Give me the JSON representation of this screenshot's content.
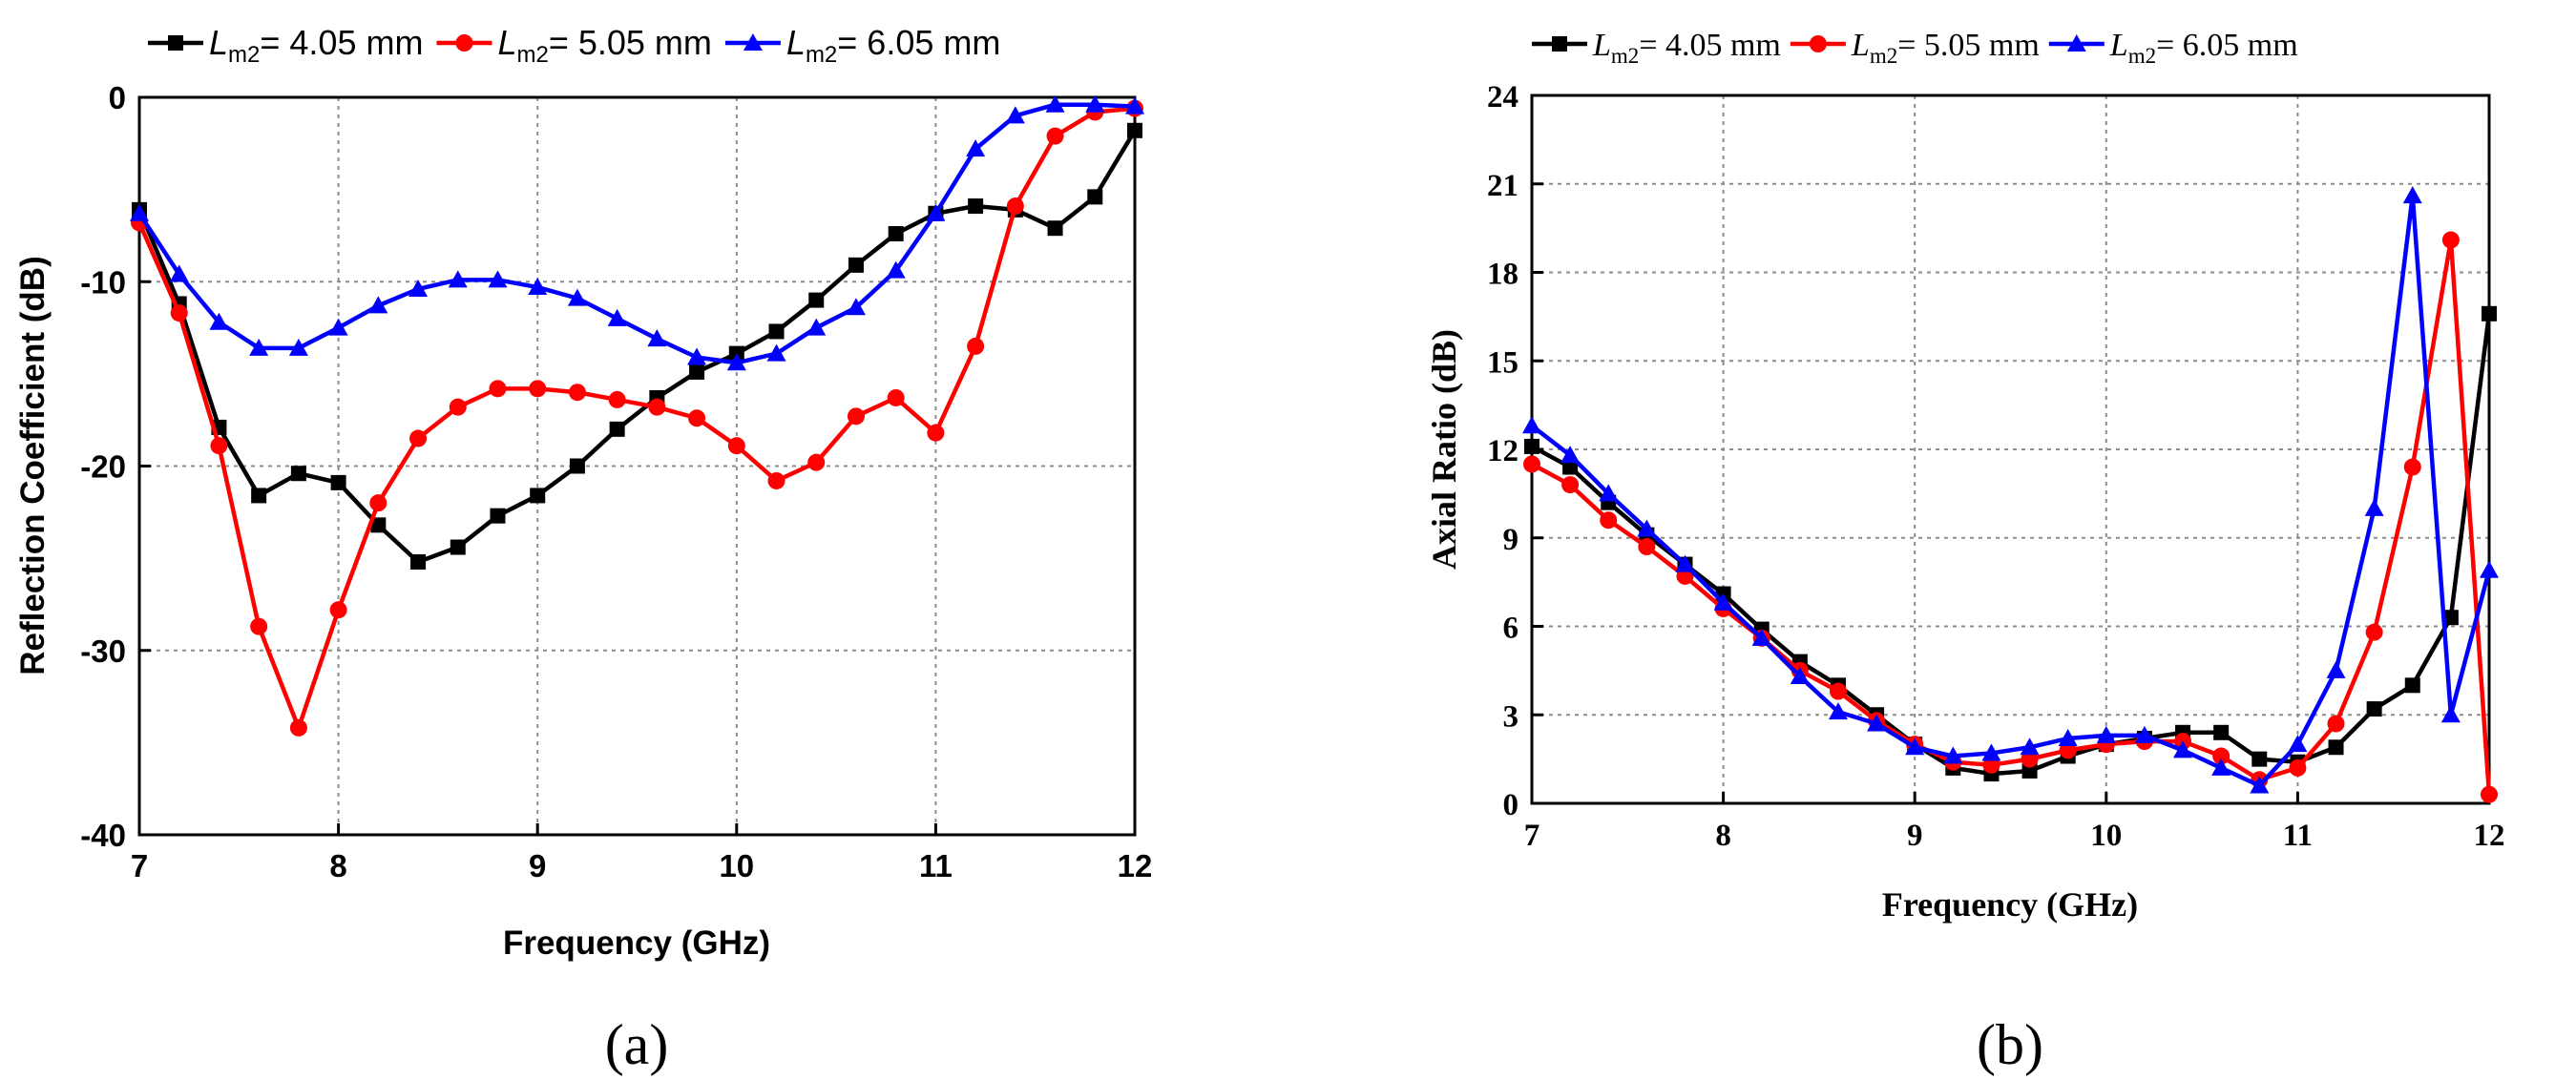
{
  "chart_data": [
    {
      "panel": "a",
      "type": "line",
      "panel_label": "(a)",
      "xlabel": "Frequency (GHz)",
      "ylabel": "Reflection Coefficient (dB)",
      "xlim": [
        7,
        12
      ],
      "ylim": [
        -40,
        0
      ],
      "xticks": [
        7,
        8,
        9,
        10,
        11,
        12
      ],
      "yticks": [
        -40,
        -30,
        -20,
        -10,
        0
      ],
      "grid": true,
      "legend_position": "top",
      "series": [
        {
          "name": "L_m2 = 4.05 mm",
          "legend_symbol": "L",
          "legend_subscript": "m2",
          "legend_value": "= 4.05 mm",
          "color": "#000000",
          "marker": "square",
          "x": [
            7,
            7.2,
            7.4,
            7.6,
            7.8,
            8,
            8.2,
            8.4,
            8.6,
            8.8,
            9,
            9.2,
            9.4,
            9.6,
            9.8,
            10,
            10.2,
            10.4,
            10.6,
            10.8,
            11,
            11.2,
            11.4,
            11.6,
            11.8,
            12
          ],
          "y": [
            -6.1,
            -11.2,
            -17.9,
            -21.6,
            -20.4,
            -20.9,
            -23.2,
            -25.2,
            -24.4,
            -22.7,
            -21.6,
            -20.0,
            -18.0,
            -16.3,
            -14.9,
            -13.9,
            -12.7,
            -11.0,
            -9.1,
            -7.4,
            -6.3,
            -5.9,
            -6.1,
            -7.1,
            -5.4,
            -1.8
          ]
        },
        {
          "name": "L_m2 = 5.05 mm",
          "legend_symbol": "L",
          "legend_subscript": "m2",
          "legend_value": "= 5.05 mm",
          "color": "#ff0000",
          "marker": "circle",
          "x": [
            7,
            7.2,
            7.4,
            7.6,
            7.8,
            8,
            8.2,
            8.4,
            8.6,
            8.8,
            9,
            9.2,
            9.4,
            9.6,
            9.8,
            10,
            10.2,
            10.4,
            10.6,
            10.8,
            11,
            11.2,
            11.4,
            11.6,
            11.8,
            12
          ],
          "y": [
            -6.8,
            -11.7,
            -18.9,
            -28.7,
            -34.2,
            -27.8,
            -22.0,
            -18.5,
            -16.8,
            -15.8,
            -15.8,
            -16.0,
            -16.4,
            -16.8,
            -17.4,
            -18.9,
            -20.8,
            -19.8,
            -17.3,
            -16.3,
            -18.2,
            -13.5,
            -5.9,
            -2.1,
            -0.8,
            -0.6
          ]
        },
        {
          "name": "L_m2 = 6.05 mm",
          "legend_symbol": "L",
          "legend_subscript": "m2",
          "legend_value": "= 6.05 mm",
          "color": "#0000ff",
          "marker": "triangle",
          "x": [
            7,
            7.2,
            7.4,
            7.6,
            7.8,
            8,
            8.2,
            8.4,
            8.6,
            8.8,
            9,
            9.2,
            9.4,
            9.6,
            9.8,
            10,
            10.2,
            10.4,
            10.6,
            10.8,
            11,
            11.2,
            11.4,
            11.6,
            11.8,
            12
          ],
          "y": [
            -6.3,
            -9.6,
            -12.2,
            -13.6,
            -13.6,
            -12.5,
            -11.3,
            -10.4,
            -9.9,
            -9.9,
            -10.3,
            -10.9,
            -12.0,
            -13.1,
            -14.1,
            -14.4,
            -13.9,
            -12.5,
            -11.4,
            -9.4,
            -6.3,
            -2.8,
            -1.0,
            -0.4,
            -0.4,
            -0.5
          ]
        }
      ]
    },
    {
      "panel": "b",
      "type": "line",
      "panel_label": "(b)",
      "xlabel": "Frequency (GHz)",
      "ylabel": "Axial Ratio (dB)",
      "xlim": [
        7,
        12
      ],
      "ylim": [
        0,
        24
      ],
      "xticks": [
        7,
        8,
        9,
        10,
        11,
        12
      ],
      "yticks": [
        0,
        3,
        6,
        9,
        12,
        15,
        18,
        21,
        24
      ],
      "grid": true,
      "legend_position": "top",
      "series": [
        {
          "name": "L_m2 = 4.05 mm",
          "legend_symbol": "L",
          "legend_subscript": "m2",
          "legend_value": "= 4.05 mm",
          "color": "#000000",
          "marker": "square",
          "x": [
            7,
            7.2,
            7.4,
            7.6,
            7.8,
            8,
            8.2,
            8.4,
            8.6,
            8.8,
            9,
            9.2,
            9.4,
            9.6,
            9.8,
            10,
            10.2,
            10.4,
            10.6,
            10.8,
            11,
            11.2,
            11.4,
            11.6,
            11.8,
            12
          ],
          "y": [
            12.1,
            11.4,
            10.2,
            9.1,
            8.1,
            7.1,
            5.9,
            4.8,
            4.0,
            3.0,
            2.0,
            1.2,
            1.0,
            1.1,
            1.6,
            2.0,
            2.2,
            2.4,
            2.4,
            1.5,
            1.4,
            1.9,
            3.2,
            4.0,
            6.3,
            16.6
          ]
        },
        {
          "name": "L_m2 = 5.05 mm",
          "legend_symbol": "L",
          "legend_subscript": "m2",
          "legend_value": "= 5.05 mm",
          "color": "#ff0000",
          "marker": "circle",
          "x": [
            7,
            7.2,
            7.4,
            7.6,
            7.8,
            8,
            8.2,
            8.4,
            8.6,
            8.8,
            9,
            9.2,
            9.4,
            9.6,
            9.8,
            10,
            10.2,
            10.4,
            10.6,
            10.8,
            11,
            11.2,
            11.4,
            11.6,
            11.8,
            12
          ],
          "y": [
            11.5,
            10.8,
            9.6,
            8.7,
            7.7,
            6.6,
            5.6,
            4.5,
            3.8,
            2.8,
            2.0,
            1.4,
            1.3,
            1.5,
            1.8,
            2.0,
            2.1,
            2.1,
            1.6,
            0.8,
            1.2,
            2.7,
            5.8,
            11.4,
            19.1,
            0.3
          ]
        },
        {
          "name": "L_m2 = 6.05 mm",
          "legend_symbol": "L",
          "legend_subscript": "m2",
          "legend_value": "= 6.05 mm",
          "color": "#0000ff",
          "marker": "triangle",
          "x": [
            7,
            7.2,
            7.4,
            7.6,
            7.8,
            8,
            8.2,
            8.4,
            8.6,
            8.8,
            9,
            9.2,
            9.4,
            9.6,
            9.8,
            10,
            10.2,
            10.4,
            10.6,
            10.8,
            11,
            11.2,
            11.4,
            11.6,
            11.8,
            12
          ],
          "y": [
            12.8,
            11.8,
            10.5,
            9.3,
            8.1,
            6.8,
            5.6,
            4.3,
            3.1,
            2.7,
            1.9,
            1.6,
            1.7,
            1.9,
            2.2,
            2.3,
            2.3,
            1.8,
            1.2,
            0.6,
            2.0,
            4.5,
            10.0,
            20.6,
            3.0,
            7.9
          ]
        }
      ]
    }
  ]
}
